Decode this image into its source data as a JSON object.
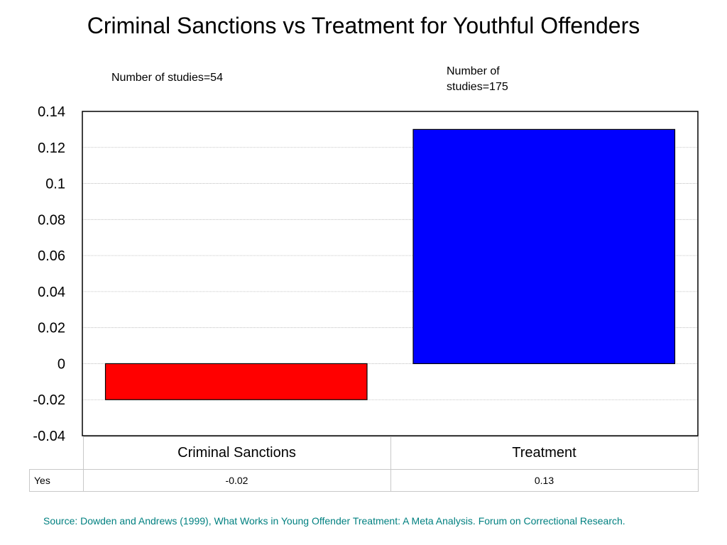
{
  "slide": {
    "title": "Criminal Sanctions vs Treatment for Youthful Offenders",
    "annotations": [
      "Number of studies=54",
      "Number of studies=175"
    ],
    "source": "Source: Dowden and Andrews (1999), What Works in Young Offender Treatment: A Meta Analysis. Forum on Correctional Research."
  },
  "chart_data": {
    "type": "bar",
    "title": "Criminal Sanctions vs Treatment for Youthful Offenders",
    "categories": [
      "Criminal Sanctions",
      "Treatment"
    ],
    "series": [
      {
        "name": "Yes",
        "values": [
          -0.02,
          0.13
        ],
        "colors": [
          "#ff0000",
          "#0000ff"
        ]
      }
    ],
    "xlabel": "",
    "ylabel": "",
    "ylim": [
      -0.04,
      0.14
    ],
    "yticks": [
      "0.14",
      "0.12",
      "0.1",
      "0.08",
      "0.06",
      "0.04",
      "0.02",
      "0",
      "-0.02",
      "-0.04"
    ],
    "grid": true,
    "legend": "data table below chart",
    "annotations": [
      "Number of studies=54",
      "Number of studies=175"
    ]
  },
  "table": {
    "row_label": "Yes",
    "values": [
      "-0.02",
      "0.13"
    ]
  }
}
